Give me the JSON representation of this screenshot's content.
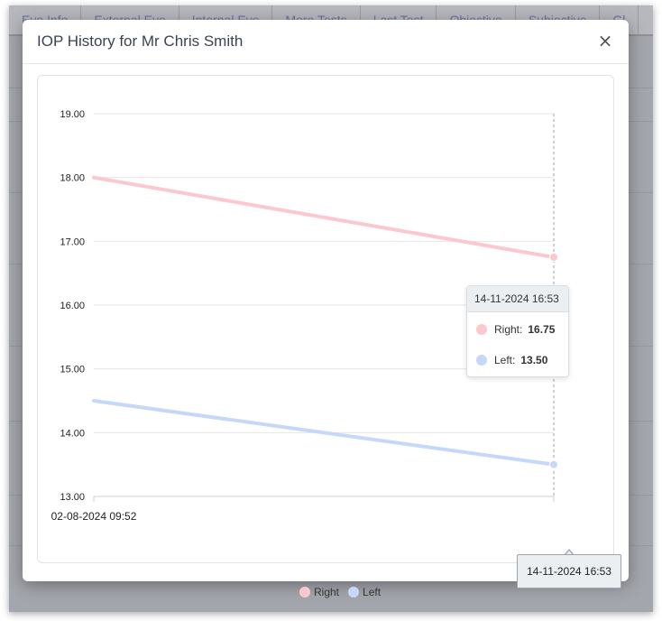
{
  "background": {
    "tabs": [
      "Eye Info",
      "External Eye",
      "Internal Eye",
      "More Tests",
      "Last Test",
      "Objective",
      "Subjective",
      "Gl"
    ]
  },
  "modal": {
    "title": "IOP History for Mr Chris Smith",
    "close_label": "×"
  },
  "chart_data": {
    "type": "line",
    "title": "",
    "xlabel": "",
    "ylabel": "",
    "x": [
      "02-08-2024 09:52",
      "14-11-2024 16:53"
    ],
    "x_tick_labels": [
      "02-08-2024 09:52"
    ],
    "series": [
      {
        "name": "Right",
        "values": [
          18.0,
          16.75
        ],
        "color": "#fcc8d0"
      },
      {
        "name": "Left",
        "values": [
          14.5,
          13.5
        ],
        "color": "#c6d8fa"
      }
    ],
    "ylim": [
      13.0,
      19.0
    ],
    "y_ticks": [
      "13.00",
      "14.00",
      "15.00",
      "16.00",
      "17.00",
      "18.00",
      "19.00"
    ],
    "grid": true,
    "legend": "bottom-center",
    "crosshair_x": "14-11-2024 16:53"
  },
  "tooltip": {
    "title": "14-11-2024 16:53",
    "rows": [
      {
        "label": "Right:",
        "value": "16.75",
        "color": "#fcc8d0"
      },
      {
        "label": "Left:",
        "value": "13.50",
        "color": "#c6d8fa"
      }
    ]
  },
  "x_axis_tooltip": "14-11-2024 16:53",
  "legend": {
    "items": [
      {
        "label": "Right",
        "color": "#fcc8d0"
      },
      {
        "label": "Left",
        "color": "#c6d8fa"
      }
    ]
  }
}
